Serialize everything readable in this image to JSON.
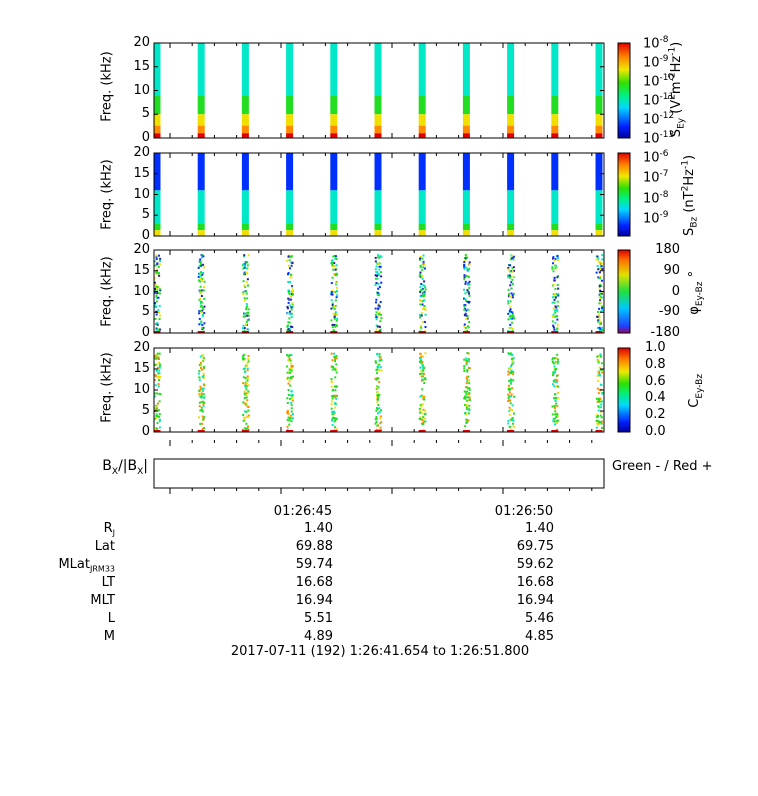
{
  "chart_data": [
    {
      "type": "heatmap",
      "ylabel": "Freq. (kHz)",
      "ylim": [
        0,
        20
      ],
      "yticks": [
        "20",
        "15",
        "10",
        "5",
        "0"
      ],
      "colorbar_label_main": "S",
      "colorbar_label_sub": "Ey",
      "colorbar_label_unit": " (V",
      "colorbar_label_unit_sup1": "2",
      "colorbar_label_unit_mid": "m",
      "colorbar_label_unit_sup2": "-2",
      "colorbar_label_unit_mid2": "Hz",
      "colorbar_label_unit_sup3": "-1",
      "colorbar_label_unit_end": ")",
      "colorbar_scale": "log",
      "colorbar_ticks": [
        {
          "base": "10",
          "exp": "-8"
        },
        {
          "base": "10",
          "exp": "-9"
        },
        {
          "base": "10",
          "exp": "-10"
        },
        {
          "base": "10",
          "exp": "-11"
        },
        {
          "base": "10",
          "exp": "-12"
        },
        {
          "base": "10",
          "exp": "-13"
        }
      ]
    },
    {
      "type": "heatmap",
      "ylabel": "Freq. (kHz)",
      "ylim": [
        0,
        20
      ],
      "yticks": [
        "20",
        "15",
        "10",
        "5",
        "0"
      ],
      "colorbar_label_main": "S",
      "colorbar_label_sub": "Bz",
      "colorbar_label_unit": " (nT",
      "colorbar_label_unit_sup1": "2",
      "colorbar_label_unit_mid": "Hz",
      "colorbar_label_unit_sup2": "-1",
      "colorbar_label_unit_end": ")",
      "colorbar_scale": "log",
      "colorbar_ticks": [
        {
          "base": "10",
          "exp": "-6"
        },
        {
          "base": "10",
          "exp": "-7"
        },
        {
          "base": "10",
          "exp": "-8"
        },
        {
          "base": "10",
          "exp": "-9"
        }
      ]
    },
    {
      "type": "heatmap",
      "ylabel": "Freq. (kHz)",
      "ylim": [
        0,
        20
      ],
      "yticks": [
        "20",
        "15",
        "10",
        "5",
        "0"
      ],
      "colorbar_label_main": "φ",
      "colorbar_label_sub": "Ey-Bz",
      "colorbar_label_unit": " °",
      "colorbar_range": [
        -180,
        180
      ],
      "colorbar_ticks": [
        "180",
        "90",
        "0",
        "-90",
        "-180"
      ]
    },
    {
      "type": "heatmap",
      "ylabel": "Freq. (kHz)",
      "ylim": [
        0,
        20
      ],
      "yticks": [
        "20",
        "15",
        "10",
        "5",
        "0"
      ],
      "colorbar_label_main": "C",
      "colorbar_label_sub": "Ey-Bz",
      "colorbar_range": [
        0,
        1
      ],
      "colorbar_ticks": [
        "1.0",
        "0.8",
        "0.6",
        "0.4",
        "0.2",
        "0.0"
      ]
    },
    {
      "type": "bar",
      "ylabel_pre": "B",
      "ylabel_sub": "X",
      "ylabel_mid": "/|B",
      "ylabel_sub2": "X",
      "ylabel_end": "|",
      "legend_text": "Green - / Red +",
      "values": []
    }
  ],
  "spectrogram": {
    "burst_count": 11,
    "colors": {
      "red": "#e00000",
      "orange": "#ff8c00",
      "yellow": "#f0e000",
      "green": "#22dd22",
      "cyan": "#00e8c8",
      "blue": "#0030ff"
    }
  },
  "time_axis": {
    "ticks": [
      "01:26:45",
      "01:26:50"
    ]
  },
  "ephemeris": {
    "rows": [
      {
        "label": "R",
        "sub": "J",
        "values": [
          "1.40",
          "1.40"
        ]
      },
      {
        "label": "Lat",
        "sub": "",
        "values": [
          "69.88",
          "69.75"
        ]
      },
      {
        "label": "MLat",
        "sub": "JRM33",
        "values": [
          "59.74",
          "59.62"
        ]
      },
      {
        "label": "LT",
        "sub": "",
        "values": [
          "16.68",
          "16.68"
        ]
      },
      {
        "label": "MLT",
        "sub": "",
        "values": [
          "16.94",
          "16.94"
        ]
      },
      {
        "label": "L",
        "sub": "",
        "values": [
          "5.51",
          "5.46"
        ]
      },
      {
        "label": "M",
        "sub": "",
        "values": [
          "4.89",
          "4.85"
        ]
      }
    ]
  },
  "footer": {
    "timerange": "2017-07-11 (192) 1:26:41.654 to 1:26:51.800"
  }
}
